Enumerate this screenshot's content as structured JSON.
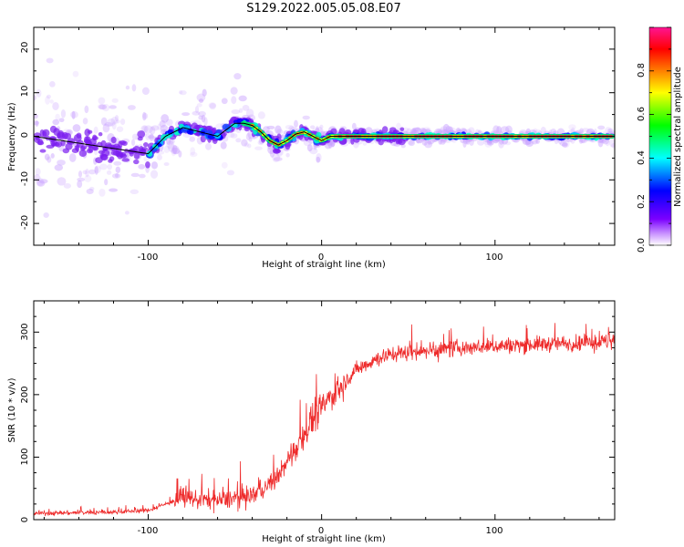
{
  "title": "S129.2022.005.05.08.E07",
  "colors": {
    "snr_line": "#ee2a2a",
    "dense_band": "#e03030",
    "frame": "#000000"
  },
  "chart_data": [
    {
      "type": "heatmap",
      "xlabel": "Height of straight line (km)",
      "ylabel": "Frequency (Hz)",
      "xlim": [
        -166,
        169
      ],
      "ylim": [
        -25,
        25
      ],
      "x_ticks": [
        -100,
        0,
        100
      ],
      "y_ticks": [
        -20,
        -10,
        0,
        10,
        20
      ],
      "colorbar": {
        "label": "Normalized spectral amplitude",
        "range": [
          0,
          1
        ],
        "ticks": [
          "0.0",
          "0.2",
          "0.4",
          "0.6",
          "0.8"
        ],
        "colormap": [
          "#ffffff",
          "#7b00ff",
          "#0000ff",
          "#00ffff",
          "#00ff00",
          "#ffff00",
          "#ff7f00",
          "#ff0000",
          "#ff0080"
        ]
      },
      "ridge_line": {
        "x": [
          -166,
          -100,
          -90,
          -80,
          -70,
          -60,
          -50,
          -45,
          -40,
          -35,
          -30,
          -25,
          -20,
          -15,
          -10,
          -5,
          0,
          5,
          10,
          20,
          40,
          60,
          80,
          100,
          120,
          140,
          169
        ],
        "y": [
          0,
          -4,
          0,
          2,
          1,
          0,
          3,
          3,
          2.5,
          1,
          -1,
          -2,
          -1,
          0.5,
          1,
          0,
          -1,
          0,
          0,
          0,
          0,
          0,
          0,
          0,
          0,
          0,
          0
        ]
      }
    },
    {
      "type": "line",
      "xlabel": "Height of straight line (km)",
      "ylabel": "SNR (10 * v/v)",
      "xlim": [
        -166,
        169
      ],
      "ylim": [
        0,
        350
      ],
      "x_ticks": [
        -100,
        0,
        100
      ],
      "y_ticks": [
        0,
        100,
        200,
        300
      ],
      "trend": {
        "x": [
          -166,
          -120,
          -100,
          -80,
          -60,
          -40,
          -30,
          -20,
          -10,
          0,
          10,
          20,
          30,
          40,
          60,
          80,
          100,
          120,
          140,
          169
        ],
        "y": [
          10,
          12,
          15,
          35,
          30,
          40,
          55,
          90,
          140,
          180,
          210,
          240,
          255,
          265,
          270,
          275,
          278,
          280,
          282,
          285
        ]
      }
    }
  ]
}
